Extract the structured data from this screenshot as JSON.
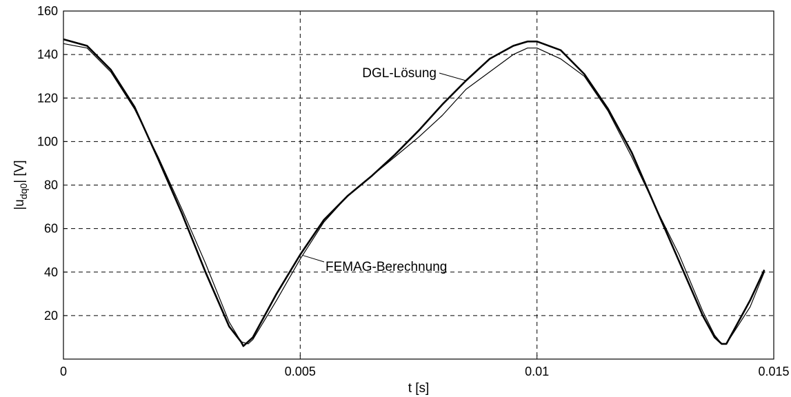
{
  "chart_data": {
    "type": "line",
    "title": "",
    "xlabel": "t [s]",
    "ylabel": {
      "prefix": "|u",
      "subscript": "dq0",
      "suffix": "| [V]"
    },
    "xlim": [
      0,
      0.015
    ],
    "ylim": [
      0,
      160
    ],
    "xticks": [
      0,
      0.005,
      0.01,
      0.015
    ],
    "xtick_labels": [
      "0",
      "0.005",
      "0.01",
      "0.015"
    ],
    "yticks": [
      20,
      40,
      60,
      80,
      100,
      120,
      140,
      160
    ],
    "ytick_labels": [
      "20",
      "40",
      "60",
      "80",
      "100",
      "120",
      "140",
      "160"
    ],
    "grid": true,
    "series": [
      {
        "name": "DGL-Lösung",
        "style": "thick",
        "x": [
          0,
          0.0005,
          0.001,
          0.0015,
          0.002,
          0.0025,
          0.003,
          0.0035,
          0.00375,
          0.0038,
          0.004,
          0.0045,
          0.005,
          0.0055,
          0.006,
          0.0065,
          0.007,
          0.0075,
          0.008,
          0.0085,
          0.009,
          0.0095,
          0.0098,
          0.01,
          0.0105,
          0.011,
          0.0115,
          0.012,
          0.0125,
          0.013,
          0.0135,
          0.01375,
          0.0139,
          0.014,
          0.0145,
          0.0148
        ],
        "y": [
          147,
          144,
          133,
          116,
          92,
          67,
          40,
          15,
          8,
          6,
          10,
          30,
          48,
          64,
          75,
          84,
          94,
          105,
          117,
          128,
          138,
          144,
          146,
          146,
          142,
          131,
          115,
          95,
          70,
          45,
          20,
          10,
          7,
          7,
          27,
          41
        ]
      },
      {
        "name": "FEMAG-Berechnung",
        "style": "thin",
        "x": [
          0,
          0.0005,
          0.001,
          0.0015,
          0.002,
          0.0025,
          0.003,
          0.0035,
          0.00375,
          0.0039,
          0.004,
          0.0045,
          0.005,
          0.0055,
          0.006,
          0.0065,
          0.007,
          0.0075,
          0.008,
          0.0085,
          0.009,
          0.0095,
          0.0098,
          0.01,
          0.0105,
          0.011,
          0.0115,
          0.012,
          0.0125,
          0.013,
          0.0135,
          0.01375,
          0.0139,
          0.014,
          0.0145,
          0.0148
        ],
        "y": [
          145,
          143,
          132,
          115,
          93,
          69,
          44,
          17,
          8,
          7,
          9,
          27,
          46,
          63,
          75,
          84,
          93,
          102,
          112,
          124,
          132,
          140,
          143,
          143,
          138,
          130,
          114,
          93,
          70,
          48,
          22,
          11,
          7,
          7,
          24,
          40
        ]
      }
    ],
    "annotations": [
      {
        "text": "DGL-Lösung",
        "series": 0,
        "at_x": 0.0085
      },
      {
        "text": "FEMAG-Berechnung",
        "series": 1,
        "at_x": 0.00505
      }
    ]
  }
}
